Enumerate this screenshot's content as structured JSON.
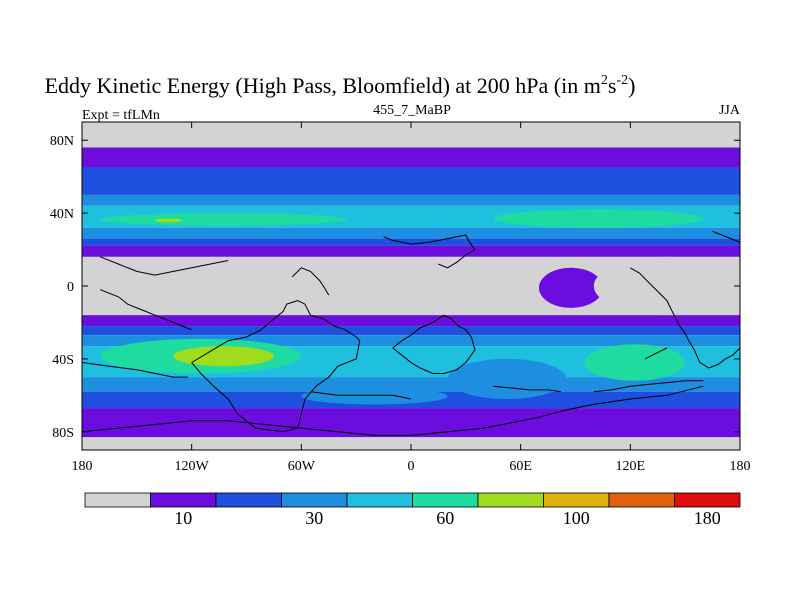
{
  "chart_data": {
    "type": "heatmap",
    "title": "Eddy Kinetic Energy (High Pass, Bloomfield) at 200 hPa (in m",
    "title_unit_base": "s",
    "title_sup_1": "2",
    "title_sup_2": "-2",
    "title_close": ")",
    "subtitle": "455_7_MaBP",
    "left_label": "Expt = tfLMn",
    "right_label": "JJA",
    "x_ticks": [
      "180",
      "120W",
      "60W",
      "0",
      "60E",
      "120E",
      "180"
    ],
    "x_tick_values": [
      -180,
      -120,
      -60,
      0,
      60,
      120,
      180
    ],
    "y_ticks": [
      "80N",
      "40N",
      "0",
      "40S",
      "80S"
    ],
    "y_tick_values": [
      80,
      40,
      0,
      -40,
      -80
    ],
    "xlim": [
      -180,
      180
    ],
    "ylim": [
      -90,
      90
    ],
    "colorbar": {
      "colors": [
        "#d3d3d3",
        "#6a0dde",
        "#1f4fde",
        "#1e8fe0",
        "#1fbfe0",
        "#1edc9f",
        "#9fdc1e",
        "#e0b10d",
        "#e0600d",
        "#e00d0d"
      ],
      "labels": [
        "10",
        "30",
        "60",
        "100",
        "180"
      ],
      "label_positions": [
        1,
        3,
        5,
        7,
        9
      ]
    },
    "bands": [
      {
        "lat": [
          90,
          76
        ],
        "level": 0
      },
      {
        "lat": [
          76,
          65
        ],
        "level": 1
      },
      {
        "lat": [
          65,
          50
        ],
        "level": 2
      },
      {
        "lat": [
          50,
          44
        ],
        "level": 3
      },
      {
        "lat": [
          44,
          32
        ],
        "level": 4
      },
      {
        "lat": [
          32,
          26
        ],
        "level": 3
      },
      {
        "lat": [
          26,
          22
        ],
        "level": 2
      },
      {
        "lat": [
          22,
          16
        ],
        "level": 1
      },
      {
        "lat": [
          16,
          -16
        ],
        "level": 0
      },
      {
        "lat": [
          -16,
          -22
        ],
        "level": 1
      },
      {
        "lat": [
          -22,
          -27
        ],
        "level": 2
      },
      {
        "lat": [
          -27,
          -33
        ],
        "level": 3
      },
      {
        "lat": [
          -33,
          -50
        ],
        "level": 4
      },
      {
        "lat": [
          -50,
          -58
        ],
        "level": 3
      },
      {
        "lat": [
          -58,
          -67
        ],
        "level": 2
      },
      {
        "lat": [
          -67,
          -83
        ],
        "level": 1
      },
      {
        "lat": [
          -83,
          -90
        ],
        "level": 0
      }
    ],
    "patches": [
      {
        "lon": [
          -170,
          -35
        ],
        "lat": [
          40,
          33
        ],
        "level": 5
      },
      {
        "lon": [
          45,
          160
        ],
        "lat": [
          42,
          32
        ],
        "level": 5
      },
      {
        "lon": [
          -140,
          -125
        ],
        "lat": [
          37,
          35
        ],
        "level": 6
      },
      {
        "lon": [
          -170,
          -60
        ],
        "lat": [
          -29,
          -48
        ],
        "level": 5
      },
      {
        "lon": [
          -130,
          -75
        ],
        "lat": [
          -33,
          -44
        ],
        "level": 6
      },
      {
        "lon": [
          95,
          150
        ],
        "lat": [
          -32,
          -52
        ],
        "level": 5
      },
      {
        "lon": [
          20,
          85
        ],
        "lat": [
          -40,
          -62
        ],
        "level": 3
      },
      {
        "lon": [
          -60,
          20
        ],
        "lat": [
          -56,
          -65
        ],
        "level": 3
      },
      {
        "lon": [
          70,
          105
        ],
        "lat": [
          10,
          -12
        ],
        "level": 1
      },
      {
        "lon": [
          100,
          180
        ],
        "lat": [
          16,
          -16
        ],
        "level": 0
      }
    ],
    "coastlines": [
      [
        [
          -120,
          -42
        ],
        [
          -110,
          -36
        ],
        [
          -100,
          -30
        ],
        [
          -90,
          -28
        ],
        [
          -82,
          -24
        ],
        [
          -75,
          -18
        ],
        [
          -70,
          -14
        ],
        [
          -68,
          -10
        ],
        [
          -62,
          -8
        ],
        [
          -58,
          -10
        ],
        [
          -55,
          -16
        ],
        [
          -48,
          -18
        ],
        [
          -42,
          -22
        ],
        [
          -36,
          -24
        ],
        [
          -30,
          -28
        ],
        [
          -28,
          -30
        ],
        [
          -30,
          -40
        ],
        [
          -40,
          -44
        ],
        [
          -45,
          -50
        ],
        [
          -52,
          -55
        ],
        [
          -58,
          -62
        ],
        [
          -60,
          -70
        ],
        [
          -62,
          -78
        ],
        [
          -70,
          -80
        ],
        [
          -85,
          -78
        ],
        [
          -95,
          -70
        ],
        [
          -100,
          -62
        ],
        [
          -108,
          -55
        ],
        [
          -115,
          -48
        ],
        [
          -120,
          -42
        ]
      ],
      [
        [
          -10,
          -34
        ],
        [
          -5,
          -30
        ],
        [
          0,
          -27
        ],
        [
          5,
          -23
        ],
        [
          12,
          -20
        ],
        [
          18,
          -16
        ],
        [
          22,
          -18
        ],
        [
          26,
          -22
        ],
        [
          30,
          -24
        ],
        [
          33,
          -28
        ],
        [
          35,
          -35
        ],
        [
          30,
          -42
        ],
        [
          25,
          -46
        ],
        [
          18,
          -48
        ],
        [
          12,
          -48
        ],
        [
          5,
          -45
        ],
        [
          0,
          -42
        ],
        [
          -5,
          -38
        ],
        [
          -10,
          -34
        ]
      ],
      [
        [
          -15,
          27
        ],
        [
          -10,
          25
        ],
        [
          0,
          23
        ],
        [
          10,
          24
        ],
        [
          20,
          26
        ],
        [
          30,
          28
        ],
        [
          32,
          24
        ],
        [
          35,
          20
        ],
        [
          30,
          17
        ],
        [
          25,
          13
        ],
        [
          20,
          10
        ],
        [
          15,
          12
        ]
      ],
      [
        [
          120,
          10
        ],
        [
          125,
          7
        ],
        [
          130,
          2
        ],
        [
          135,
          -3
        ],
        [
          140,
          -8
        ],
        [
          142,
          -12
        ],
        [
          145,
          -18
        ],
        [
          147,
          -22
        ],
        [
          150,
          -26
        ],
        [
          152,
          -30
        ],
        [
          155,
          -35
        ],
        [
          158,
          -42
        ],
        [
          163,
          -45
        ],
        [
          168,
          -43
        ],
        [
          172,
          -40
        ],
        [
          176,
          -38
        ],
        [
          180,
          -34
        ]
      ],
      [
        [
          160,
          -55
        ],
        [
          140,
          -60
        ],
        [
          120,
          -62
        ],
        [
          100,
          -65
        ],
        [
          85,
          -68
        ],
        [
          70,
          -72
        ],
        [
          55,
          -75
        ],
        [
          40,
          -78
        ],
        [
          20,
          -80
        ],
        [
          0,
          -82
        ],
        [
          -20,
          -82
        ],
        [
          -40,
          -80
        ],
        [
          -60,
          -78
        ],
        [
          -80,
          -76
        ],
        [
          -100,
          -74
        ],
        [
          -120,
          -74
        ],
        [
          -140,
          -76
        ],
        [
          -160,
          -78
        ],
        [
          -180,
          -80
        ]
      ],
      [
        [
          -180,
          -42
        ],
        [
          -165,
          -44
        ],
        [
          -150,
          -46
        ],
        [
          -140,
          -48
        ],
        [
          -130,
          -50
        ],
        [
          -122,
          -50
        ]
      ],
      [
        [
          -170,
          -2
        ],
        [
          -165,
          -4
        ],
        [
          -160,
          -6
        ],
        [
          -155,
          -10
        ],
        [
          -150,
          -12
        ],
        [
          -145,
          -14
        ],
        [
          -140,
          -16
        ],
        [
          -135,
          -18
        ],
        [
          -130,
          -20
        ],
        [
          -125,
          -22
        ],
        [
          -120,
          -24
        ]
      ],
      [
        [
          -55,
          -58
        ],
        [
          -40,
          -60
        ],
        [
          -25,
          -60
        ],
        [
          -10,
          -60
        ],
        [
          0,
          -62
        ]
      ],
      [
        [
          100,
          -58
        ],
        [
          110,
          -57
        ],
        [
          120,
          -55
        ],
        [
          130,
          -54
        ],
        [
          140,
          -53
        ],
        [
          150,
          -52
        ],
        [
          160,
          -52
        ]
      ],
      [
        [
          128,
          -40
        ],
        [
          132,
          -38
        ],
        [
          136,
          -36
        ],
        [
          140,
          -34
        ]
      ],
      [
        [
          45,
          -55
        ],
        [
          55,
          -56
        ],
        [
          65,
          -57
        ],
        [
          75,
          -57
        ],
        [
          82,
          -58
        ]
      ],
      [
        [
          -65,
          5
        ],
        [
          -60,
          10
        ],
        [
          -55,
          8
        ],
        [
          -50,
          3
        ],
        [
          -48,
          0
        ],
        [
          -45,
          -5
        ]
      ],
      [
        [
          165,
          30
        ],
        [
          170,
          28
        ],
        [
          175,
          26
        ],
        [
          180,
          24
        ]
      ],
      [
        [
          -170,
          16
        ],
        [
          -160,
          12
        ],
        [
          -150,
          8
        ],
        [
          -140,
          6
        ],
        [
          -130,
          8
        ],
        [
          -120,
          10
        ],
        [
          -110,
          12
        ],
        [
          -100,
          14
        ]
      ]
    ]
  }
}
